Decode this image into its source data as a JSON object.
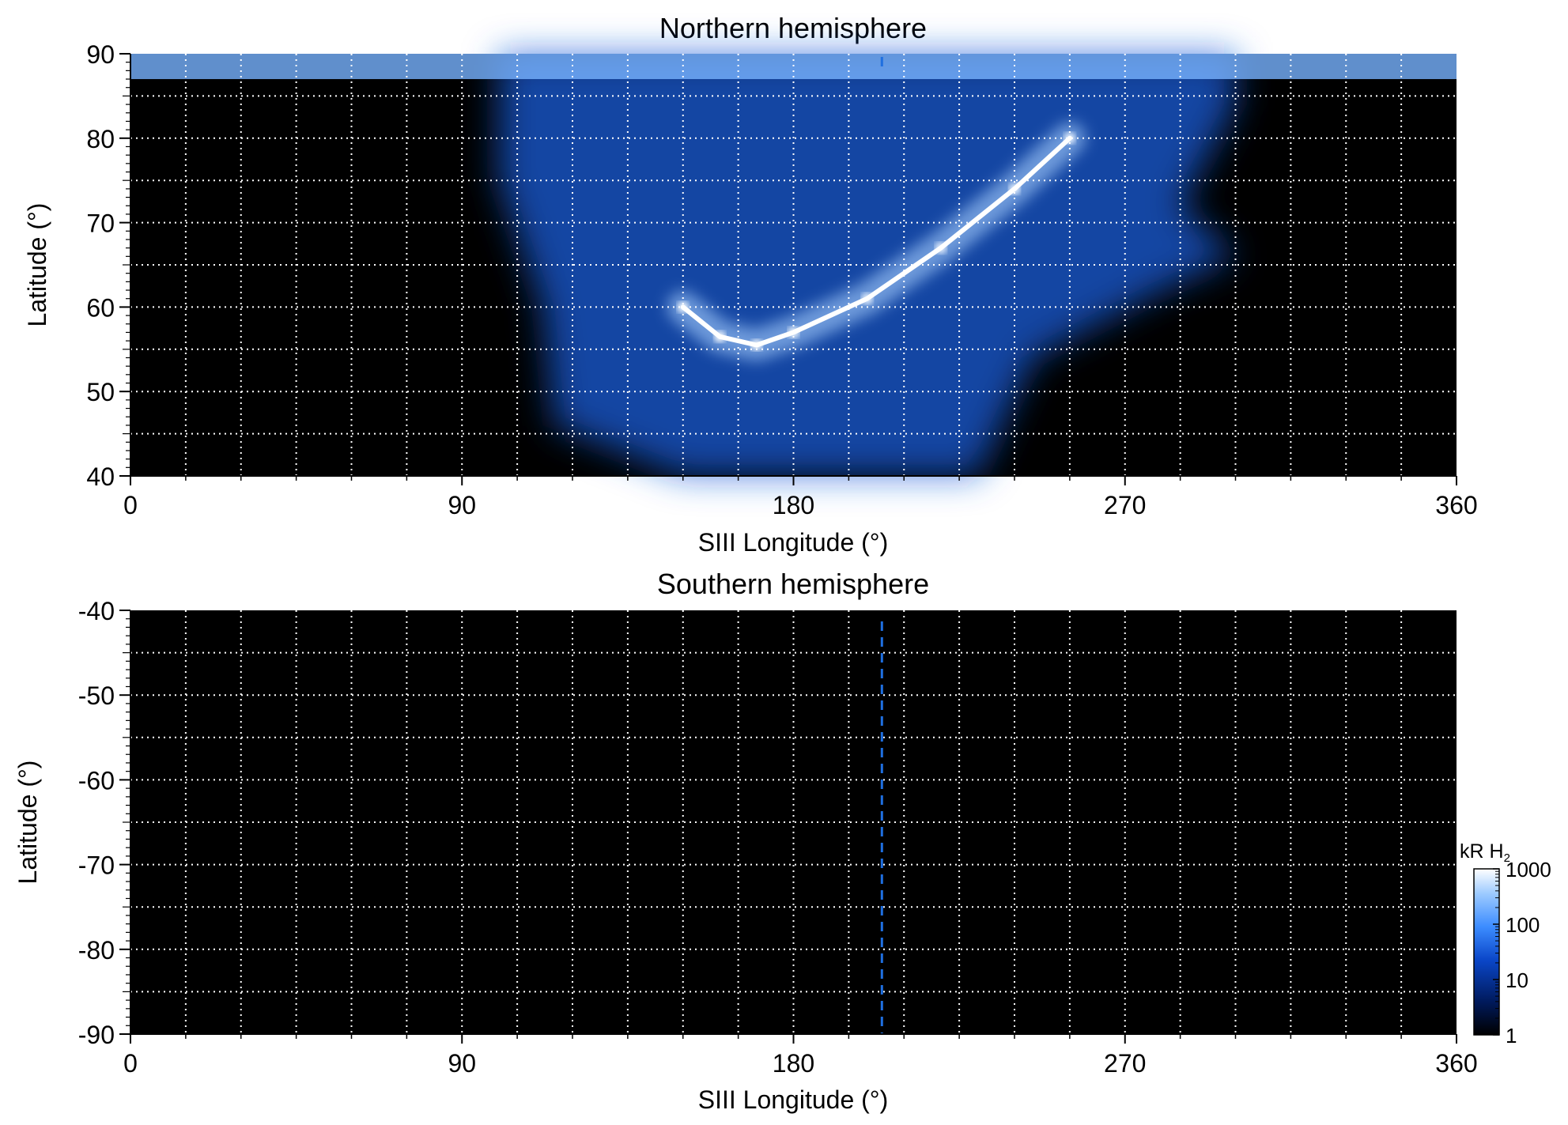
{
  "figure": {
    "colorbar": {
      "unit_label": "kR H",
      "unit_subscript": "2",
      "tick_labels": [
        "1000",
        "100",
        "10",
        "1"
      ],
      "tick_values": [
        1000,
        100,
        10,
        1
      ],
      "scale": "log",
      "range": [
        1,
        1000
      ],
      "colors": [
        "#000000",
        "#001a5c",
        "#0a46c8",
        "#3c8cff",
        "#9ccaff",
        "#ffffff"
      ]
    },
    "reference_longitude": 204,
    "reference_line_color": "#1f6fe0"
  },
  "chart_data": [
    {
      "type": "heatmap",
      "title": "Northern hemisphere",
      "xlabel": "SIII Longitude (°)",
      "ylabel": "Latitude (°)",
      "xlim": [
        0,
        360
      ],
      "ylim": [
        40,
        90
      ],
      "x_ticks": [
        0,
        90,
        180,
        270,
        360
      ],
      "x_tick_labels": [
        "0",
        "90",
        "180",
        "270",
        "360"
      ],
      "y_ticks": [
        40,
        50,
        60,
        70,
        80,
        90
      ],
      "y_tick_labels": [
        "40",
        "50",
        "60",
        "70",
        "80",
        "90"
      ],
      "grid": true,
      "grid_lon_step": 15,
      "grid_lat_step": 5,
      "main_oval_emission": [
        {
          "lon": 150,
          "lat": 60,
          "kR": 900
        },
        {
          "lon": 160,
          "lat": 56.5,
          "kR": 1000
        },
        {
          "lon": 170,
          "lat": 55.5,
          "kR": 1000
        },
        {
          "lon": 180,
          "lat": 57,
          "kR": 900
        },
        {
          "lon": 200,
          "lat": 61,
          "kR": 800
        },
        {
          "lon": 220,
          "lat": 67,
          "kR": 800
        },
        {
          "lon": 240,
          "lat": 74,
          "kR": 800
        },
        {
          "lon": 255,
          "lat": 80,
          "kR": 800
        }
      ],
      "observed_region": "longitude ~100–300°, latitude ~40–90°; background emission ~10–300 kR"
    },
    {
      "type": "heatmap",
      "title": "Southern hemisphere",
      "xlabel": "SIII Longitude (°)",
      "ylabel": "Latitude (°)",
      "xlim": [
        0,
        360
      ],
      "ylim": [
        -90,
        -40
      ],
      "x_ticks": [
        0,
        90,
        180,
        270,
        360
      ],
      "x_tick_labels": [
        "0",
        "90",
        "180",
        "270",
        "360"
      ],
      "y_ticks": [
        -40,
        -50,
        -60,
        -70,
        -80,
        -90
      ],
      "y_tick_labels": [
        "-40",
        "-50",
        "-60",
        "-70",
        "-80",
        "-90"
      ],
      "grid": true,
      "grid_lon_step": 15,
      "grid_lat_step": 5,
      "main_oval_emission": [],
      "observed_region": "none"
    }
  ]
}
